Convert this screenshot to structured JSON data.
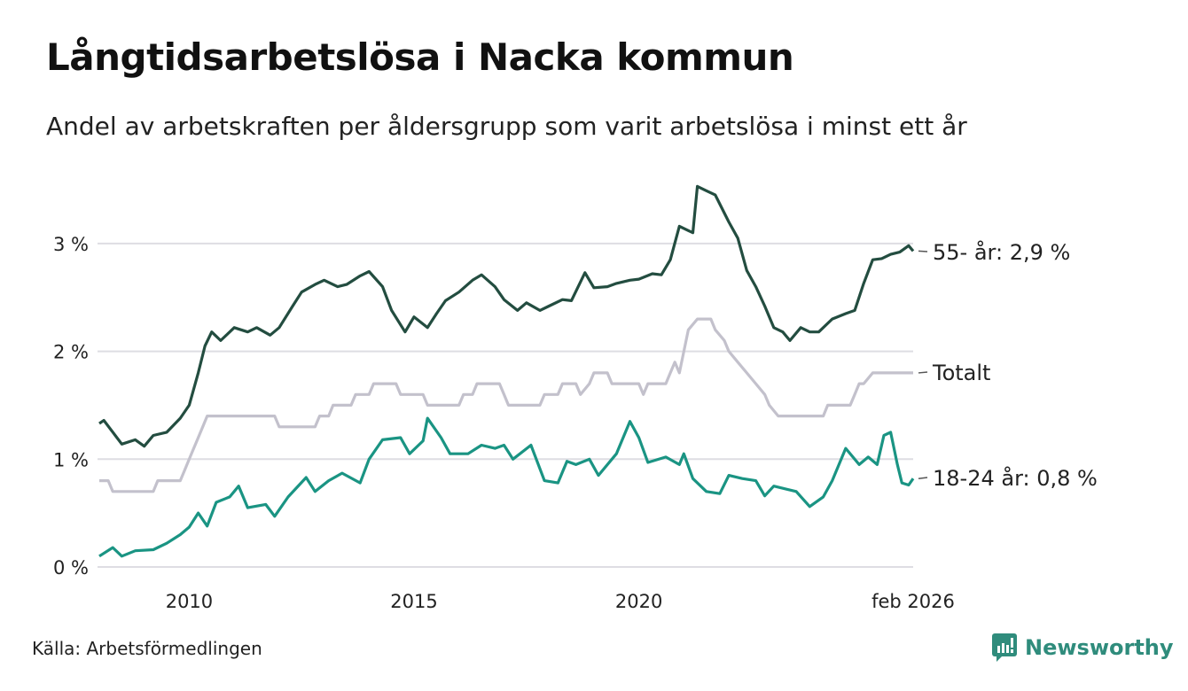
{
  "header": {
    "title": "Långtidsarbetslösa i Nacka kommun",
    "subtitle": "Andel av arbetskraften per åldersgrupp som varit arbetslösa i minst ett år"
  },
  "footer": {
    "source": "Källa: Arbetsförmedlingen",
    "brand": "Newsworthy"
  },
  "chart_data": {
    "type": "line",
    "title": "Långtidsarbetslösa i Nacka kommun",
    "xlabel": "",
    "ylabel": "",
    "xlim": [
      2008.0,
      2026.1
    ],
    "ylim": [
      0,
      3.6
    ],
    "yticks": [
      {
        "v": 0,
        "label": "0 %"
      },
      {
        "v": 1,
        "label": "1 %"
      },
      {
        "v": 2,
        "label": "2 %"
      },
      {
        "v": 3,
        "label": "3 %"
      }
    ],
    "xticks": [
      {
        "v": 2010,
        "label": "2010"
      },
      {
        "v": 2015,
        "label": "2015"
      },
      {
        "v": 2020,
        "label": "2020"
      },
      {
        "v": 2026.1,
        "label": "feb 2026"
      }
    ],
    "grid": true,
    "legend": "direct labels at right",
    "series": [
      {
        "name": "55- år",
        "label": "55- år: 2,9 %",
        "color": "#234d40",
        "x": [
          2008.0,
          2008.1,
          2008.5,
          2008.8,
          2009.0,
          2009.2,
          2009.5,
          2009.8,
          2010.0,
          2010.2,
          2010.35,
          2010.5,
          2010.7,
          2011.0,
          2011.3,
          2011.5,
          2011.8,
          2012.0,
          2012.3,
          2012.5,
          2012.8,
          2013.0,
          2013.3,
          2013.5,
          2013.8,
          2014.0,
          2014.3,
          2014.5,
          2014.8,
          2015.0,
          2015.3,
          2015.5,
          2015.7,
          2016.0,
          2016.3,
          2016.5,
          2016.8,
          2017.0,
          2017.3,
          2017.5,
          2017.8,
          2018.0,
          2018.3,
          2018.5,
          2018.8,
          2019.0,
          2019.3,
          2019.5,
          2019.8,
          2020.0,
          2020.3,
          2020.5,
          2020.7,
          2020.9,
          2021.1,
          2021.2,
          2021.3,
          2021.5,
          2021.7,
          2022.0,
          2022.2,
          2022.4,
          2022.6,
          2022.8,
          2023.0,
          2023.2,
          2023.36,
          2023.6,
          2023.8,
          2024.0,
          2024.3,
          2024.6,
          2024.8,
          2025.0,
          2025.2,
          2025.4,
          2025.6,
          2025.8,
          2026.0,
          2026.1
        ],
        "y": [
          1.33,
          1.36,
          1.14,
          1.18,
          1.12,
          1.22,
          1.25,
          1.38,
          1.5,
          1.8,
          2.05,
          2.18,
          2.1,
          2.22,
          2.18,
          2.22,
          2.15,
          2.22,
          2.42,
          2.55,
          2.62,
          2.66,
          2.6,
          2.62,
          2.7,
          2.74,
          2.6,
          2.38,
          2.18,
          2.32,
          2.22,
          2.35,
          2.47,
          2.55,
          2.66,
          2.71,
          2.6,
          2.48,
          2.38,
          2.45,
          2.38,
          2.42,
          2.48,
          2.47,
          2.73,
          2.59,
          2.6,
          2.63,
          2.66,
          2.67,
          2.72,
          2.71,
          2.85,
          3.16,
          3.12,
          3.1,
          3.53,
          3.49,
          3.45,
          3.2,
          3.05,
          2.75,
          2.6,
          2.42,
          2.22,
          2.18,
          2.1,
          2.22,
          2.18,
          2.18,
          2.3,
          2.35,
          2.38,
          2.63,
          2.85,
          2.86,
          2.9,
          2.92,
          2.98,
          2.93
        ]
      },
      {
        "name": "Totalt",
        "label": "Totalt",
        "color": "#c3c1cc",
        "x": [
          2008.0,
          2008.2,
          2008.3,
          2009.2,
          2009.3,
          2009.8,
          2009.9,
          2010.0,
          2010.1,
          2010.2,
          2010.3,
          2010.4,
          2011.9,
          2012.0,
          2012.8,
          2012.9,
          2013.1,
          2013.2,
          2013.6,
          2013.7,
          2014.0,
          2014.1,
          2014.6,
          2014.7,
          2015.2,
          2015.3,
          2016.0,
          2016.1,
          2016.3,
          2016.4,
          2016.9,
          2017.0,
          2017.1,
          2017.8,
          2017.9,
          2018.2,
          2018.3,
          2018.6,
          2018.7,
          2018.9,
          2019.0,
          2019.3,
          2019.4,
          2020.0,
          2020.1,
          2020.2,
          2020.6,
          2020.7,
          2020.8,
          2020.9,
          2021.1,
          2021.3,
          2021.6,
          2021.7,
          2021.9,
          2022.0,
          2022.2,
          2022.4,
          2022.6,
          2022.8,
          2022.9,
          2023.1,
          2024.1,
          2024.2,
          2024.7,
          2024.8,
          2024.9,
          2025.0,
          2025.2,
          2026.1
        ],
        "y": [
          0.8,
          0.8,
          0.7,
          0.7,
          0.8,
          0.8,
          0.9,
          1.0,
          1.1,
          1.2,
          1.3,
          1.4,
          1.4,
          1.3,
          1.3,
          1.4,
          1.4,
          1.5,
          1.5,
          1.6,
          1.6,
          1.7,
          1.7,
          1.6,
          1.6,
          1.5,
          1.5,
          1.6,
          1.6,
          1.7,
          1.7,
          1.6,
          1.5,
          1.5,
          1.6,
          1.6,
          1.7,
          1.7,
          1.6,
          1.7,
          1.8,
          1.8,
          1.7,
          1.7,
          1.6,
          1.7,
          1.7,
          1.8,
          1.9,
          1.8,
          2.2,
          2.3,
          2.3,
          2.2,
          2.1,
          2.0,
          1.9,
          1.8,
          1.7,
          1.6,
          1.5,
          1.4,
          1.4,
          1.5,
          1.5,
          1.6,
          1.7,
          1.7,
          1.8,
          1.8
        ]
      },
      {
        "name": "18-24 år",
        "label": "18-24 år: 0,8 %",
        "color": "#1a9483",
        "x": [
          2008.0,
          2008.3,
          2008.5,
          2008.8,
          2009.2,
          2009.5,
          2009.8,
          2010.0,
          2010.2,
          2010.4,
          2010.6,
          2010.9,
          2011.1,
          2011.3,
          2011.7,
          2011.9,
          2012.2,
          2012.4,
          2012.6,
          2012.8,
          2013.1,
          2013.4,
          2013.8,
          2014.0,
          2014.3,
          2014.7,
          2014.9,
          2015.2,
          2015.3,
          2015.6,
          2015.8,
          2016.2,
          2016.5,
          2016.8,
          2017.0,
          2017.2,
          2017.6,
          2017.9,
          2018.2,
          2018.4,
          2018.6,
          2018.9,
          2019.1,
          2019.5,
          2019.8,
          2020.0,
          2020.2,
          2020.6,
          2020.9,
          2021.0,
          2021.2,
          2021.5,
          2021.8,
          2022.0,
          2022.3,
          2022.6,
          2022.8,
          2023.0,
          2023.5,
          2023.8,
          2024.1,
          2024.3,
          2024.6,
          2024.9,
          2025.1,
          2025.3,
          2025.45,
          2025.6,
          2025.75,
          2025.85,
          2026.0,
          2026.1
        ],
        "y": [
          0.1,
          0.18,
          0.1,
          0.15,
          0.16,
          0.22,
          0.3,
          0.37,
          0.5,
          0.38,
          0.6,
          0.65,
          0.75,
          0.55,
          0.58,
          0.47,
          0.65,
          0.74,
          0.83,
          0.7,
          0.8,
          0.87,
          0.78,
          1.0,
          1.18,
          1.2,
          1.05,
          1.17,
          1.38,
          1.2,
          1.05,
          1.05,
          1.13,
          1.1,
          1.13,
          1.0,
          1.13,
          0.8,
          0.78,
          0.98,
          0.95,
          1.0,
          0.85,
          1.05,
          1.35,
          1.2,
          0.97,
          1.02,
          0.95,
          1.05,
          0.82,
          0.7,
          0.68,
          0.85,
          0.82,
          0.8,
          0.66,
          0.75,
          0.7,
          0.56,
          0.65,
          0.8,
          1.1,
          0.95,
          1.02,
          0.95,
          1.22,
          1.25,
          0.95,
          0.78,
          0.76,
          0.82
        ]
      }
    ]
  }
}
